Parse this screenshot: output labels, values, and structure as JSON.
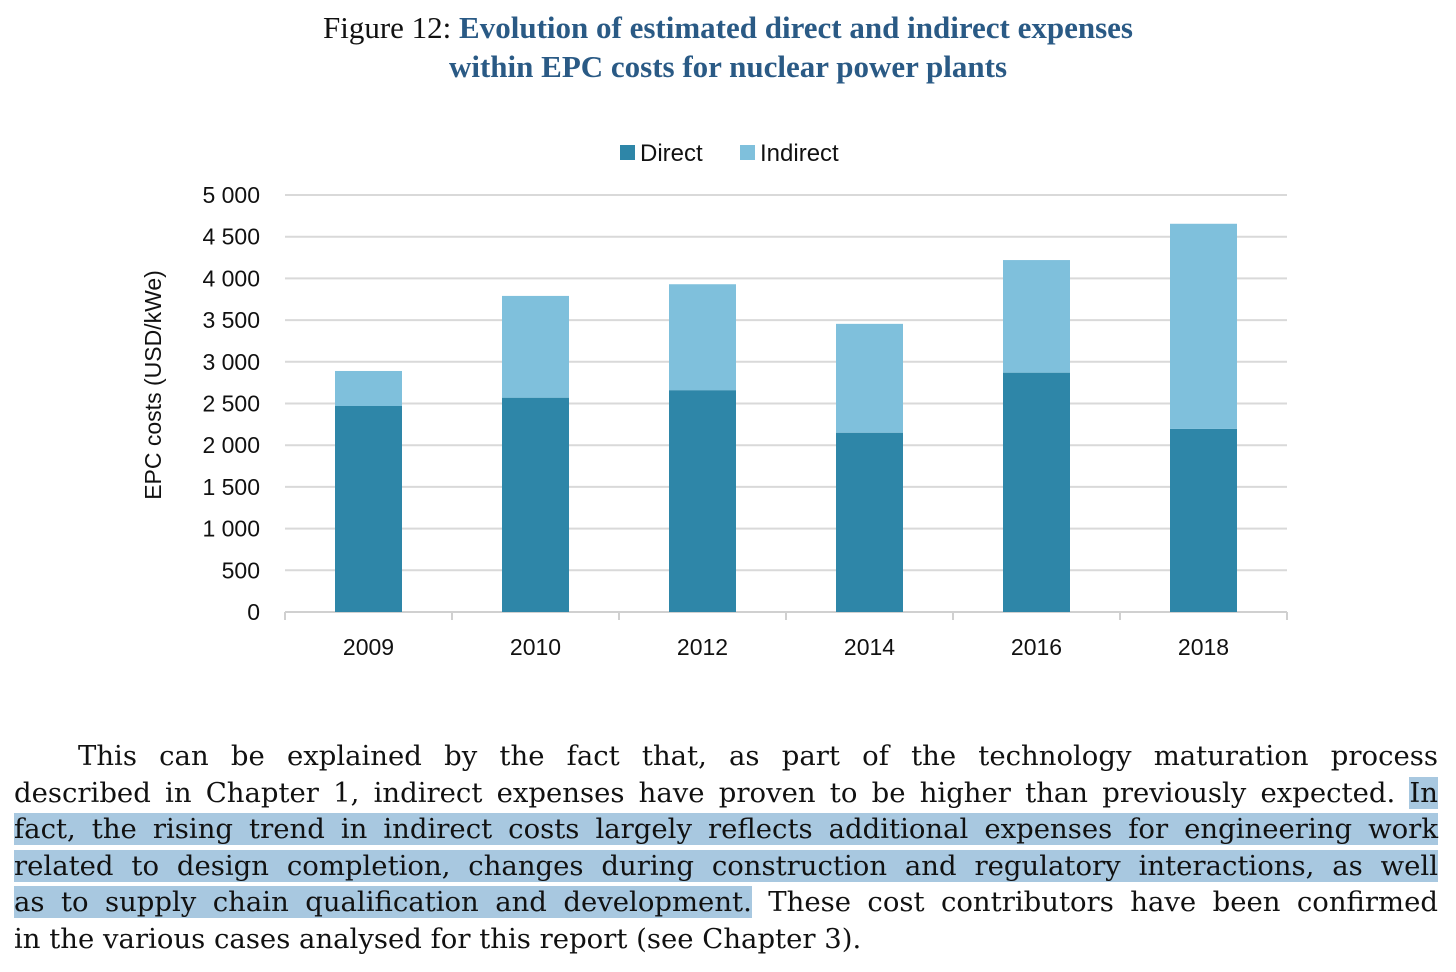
{
  "title": {
    "label": "Figure 12:",
    "line1": "Evolution of estimated direct and indirect expenses",
    "line2": "within EPC costs for nuclear power plants"
  },
  "chart_data": {
    "type": "bar",
    "stacked": true,
    "categories": [
      "2009",
      "2010",
      "2012",
      "2014",
      "2016",
      "2018"
    ],
    "series": [
      {
        "name": "Direct",
        "color": "#2e86a8",
        "values": [
          2470,
          2570,
          2660,
          2150,
          2870,
          2195
        ]
      },
      {
        "name": "Indirect",
        "color": "#7fc0dc",
        "values": [
          420,
          1220,
          1270,
          1305,
          1350,
          2460
        ]
      }
    ],
    "ylabel": "EPC costs (USD/kWe)",
    "xlabel": "",
    "ylim": [
      0,
      5000
    ],
    "yticks": [
      "0",
      "500",
      "1 000",
      "1 500",
      "2 000",
      "2 500",
      "3 000",
      "3 500",
      "4 000",
      "4 500",
      "5 000"
    ],
    "grid": true,
    "legend": "top-center"
  },
  "paragraph": [
    [
      {
        "t": "This can be explained by the fact that, as part of the technology maturation process",
        "h": false
      }
    ],
    [
      {
        "t": "described in Chapter 1, indirect expenses have proven to be higher than previously expected. ",
        "h": false
      },
      {
        "t": "In",
        "h": true
      }
    ],
    [
      {
        "t": "fact, the rising trend in indirect costs largely reflects additional expenses for engineering work",
        "h": true
      }
    ],
    [
      {
        "t": "related to design completion, changes during construction and regulatory interactions, as well",
        "h": true
      }
    ],
    [
      {
        "t": "as to supply chain qualification and development.",
        "h": true
      },
      {
        "t": " These cost contributors have been confirmed",
        "h": false
      }
    ],
    [
      {
        "t": "in the various cases analysed for this report (see Chapter 3).",
        "h": false
      }
    ]
  ]
}
